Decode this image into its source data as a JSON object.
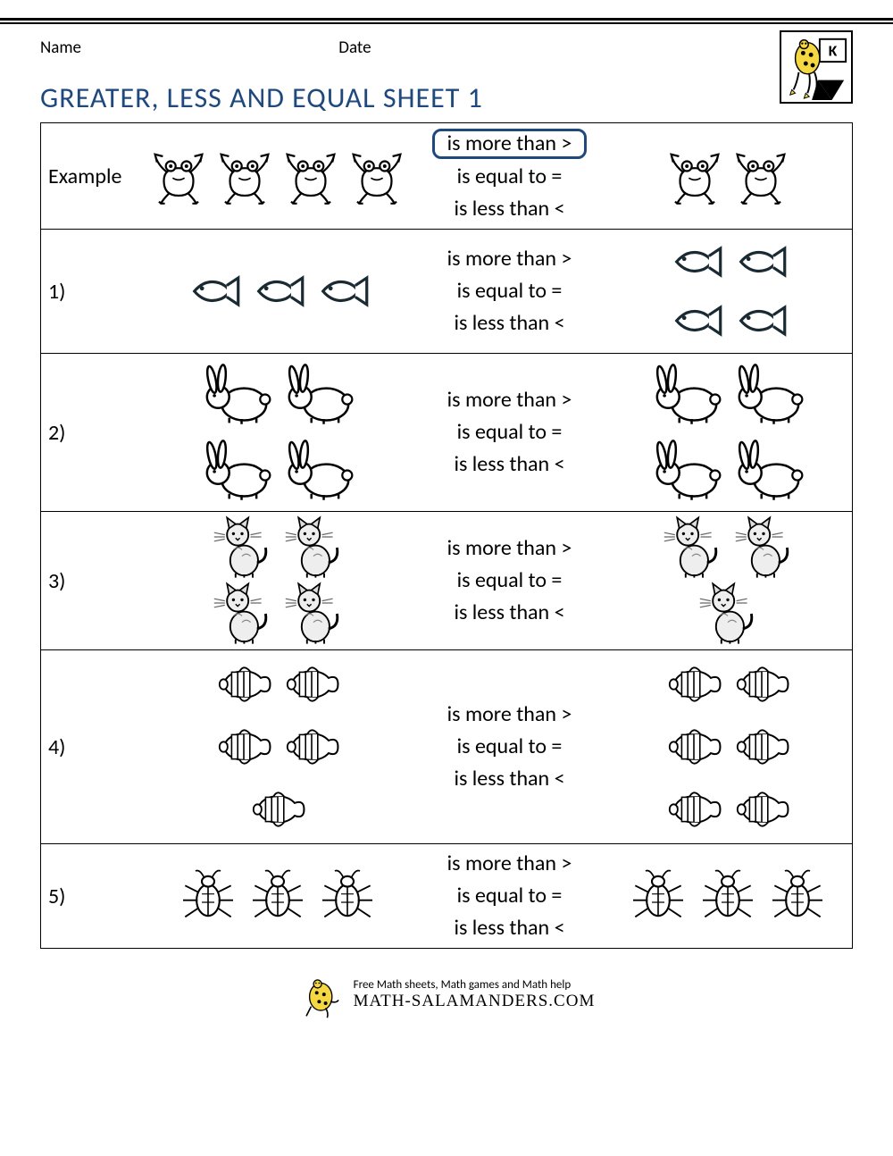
{
  "header": {
    "name_label": "Name",
    "date_label": "Date",
    "grade_badge": "K"
  },
  "title": "GREATER, LESS AND EQUAL SHEET 1",
  "options": {
    "more": "is more than >",
    "equal": "is equal to =",
    "less": "is less than <"
  },
  "rows": [
    {
      "label": "Example",
      "animal": "frog",
      "left_count": 4,
      "right_count": 2,
      "selected": "more",
      "icon_size": 72,
      "left_cols": 4,
      "right_cols": 2
    },
    {
      "label": "1)",
      "animal": "fish",
      "left_count": 3,
      "right_count": 4,
      "selected": null,
      "icon_size": 70,
      "left_cols": 3,
      "right_cols": 2
    },
    {
      "label": "2)",
      "animal": "rabbit",
      "left_count": 4,
      "right_count": 4,
      "selected": null,
      "icon_size": 90,
      "left_cols": 2,
      "right_cols": 2
    },
    {
      "label": "3)",
      "animal": "cat",
      "left_count": 4,
      "right_count": 3,
      "selected": null,
      "icon_size": 78,
      "left_cols": 2,
      "right_cols": 2
    },
    {
      "label": "4)",
      "animal": "clownfish",
      "left_count": 5,
      "right_count": 6,
      "selected": null,
      "icon_size": 74,
      "left_cols": 2,
      "right_cols": 2
    },
    {
      "label": "5)",
      "animal": "beetle",
      "left_count": 3,
      "right_count": 3,
      "selected": null,
      "icon_size": 76,
      "left_cols": 3,
      "right_cols": 3
    }
  ],
  "footer": {
    "tagline": "Free Math sheets, Math games and Math help",
    "brand": "MATH-SALAMANDERS.COM"
  },
  "colors": {
    "title": "#1f497d",
    "selection_border": "#1f497d",
    "rule": "#000000",
    "text": "#000000",
    "background": "#ffffff"
  }
}
